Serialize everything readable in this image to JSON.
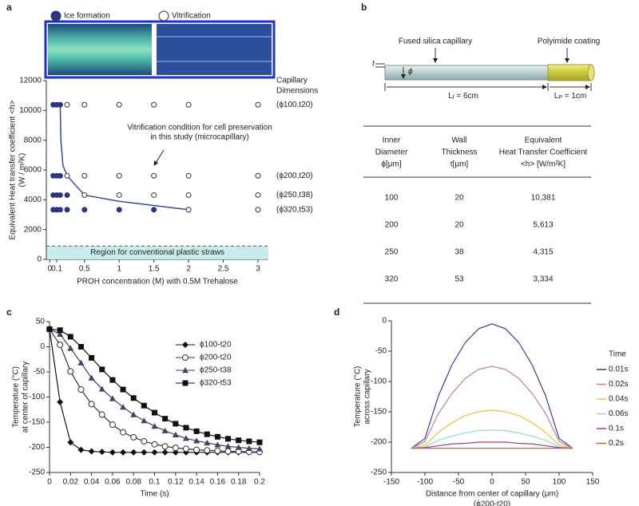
{
  "panel_labels": [
    "a",
    "b",
    "c",
    "d"
  ],
  "chart_data": [
    {
      "type": "scatter",
      "series": [
        {
          "name": "Ice formation",
          "color": "#2b3580",
          "filled": true,
          "x": [
            0.05,
            0.1,
            0.15,
            0.05,
            0.1,
            0.15,
            0.05,
            0.1,
            0.15,
            0.25,
            0.05,
            0.1,
            0.15,
            0.25,
            0.5,
            1,
            1.5
          ],
          "y": [
            10381,
            10381,
            10381,
            5613,
            5613,
            5613,
            4315,
            4315,
            4315,
            4315,
            3334,
            3334,
            3334,
            3334,
            3334,
            3334,
            3334
          ]
        },
        {
          "name": "Vitrification",
          "color": "#333333",
          "filled": false,
          "x": [
            0.25,
            0.5,
            1,
            1.5,
            2,
            3,
            0.25,
            0.5,
            1,
            1.5,
            2,
            3,
            0.5,
            1,
            1.5,
            2,
            3,
            2,
            3
          ],
          "y": [
            10381,
            10381,
            10381,
            10381,
            10381,
            10381,
            5613,
            5613,
            5613,
            5613,
            5613,
            5613,
            4315,
            4315,
            4315,
            4315,
            4315,
            3334,
            3334
          ]
        }
      ],
      "fit_line": {
        "color": "#3a4a9a",
        "x": [
          0.15,
          0.16,
          0.19,
          0.25,
          0.5,
          1,
          2
        ],
        "y": [
          10381,
          8000,
          6300,
          5613,
          4315,
          3900,
          3334
        ]
      },
      "xlim": [
        -0.05,
        3.15
      ],
      "xticks": [
        0,
        0.1,
        0.5,
        1,
        1.5,
        2,
        2.5,
        3
      ],
      "ylim": [
        0,
        12000
      ],
      "yticks": [
        0,
        2000,
        4000,
        6000,
        8000,
        10000,
        12000
      ],
      "xlabel": "PROH concentration (M) with 0.5M Trehalose",
      "ylabel": [
        "Equivalent Heat transfer coefficient <h>",
        "(W / m²K)"
      ],
      "region": {
        "value": 900,
        "label": "Region for conventional plastic straws",
        "color": "#c8ecec"
      },
      "annotation": [
        "Vitrification condition for cell preservation",
        "in this study (microcapillary)"
      ],
      "right_title": [
        "Capillary",
        "Dimensions"
      ],
      "row_labels": [
        {
          "value": 10381,
          "label": "(ϕ100,t20)"
        },
        {
          "value": 5613,
          "label": "(ϕ200,t20)"
        },
        {
          "value": 4315,
          "label": "(ϕ250,t38)"
        },
        {
          "value": 3334,
          "label": "(ϕ320,t53)"
        }
      ]
    },
    {
      "type": "line",
      "x": [
        0,
        0.01,
        0.02,
        0.03,
        0.04,
        0.05,
        0.06,
        0.07,
        0.08,
        0.09,
        0.1,
        0.11,
        0.12,
        0.13,
        0.14,
        0.15,
        0.16,
        0.17,
        0.18,
        0.19,
        0.2
      ],
      "series": [
        {
          "name": "ϕ100-t20",
          "color": "#111111",
          "marker": "diamond",
          "values": [
            35,
            -110,
            -190,
            -205,
            -208,
            -209,
            -210,
            -210,
            -210,
            -210,
            -210,
            -210,
            -210,
            -210,
            -210,
            -210,
            -210,
            -210,
            -210,
            -210,
            -210
          ]
        },
        {
          "name": "ϕ200-t20",
          "color": "#333333",
          "marker": "circle-open",
          "values": [
            35,
            4,
            -49,
            -85,
            -114,
            -135,
            -155,
            -170,
            -180,
            -188,
            -194,
            -198,
            -201,
            -203,
            -205,
            -206,
            -207,
            -208,
            -208,
            -209,
            -209
          ]
        },
        {
          "name": "ϕ250-t38",
          "color": "#3c4663",
          "marker": "triangle",
          "values": [
            35,
            25,
            -3,
            -32,
            -62,
            -84,
            -103,
            -120,
            -135,
            -147,
            -158,
            -167,
            -175,
            -182,
            -187,
            -191,
            -195,
            -198,
            -200,
            -202,
            -203
          ]
        },
        {
          "name": "ϕ320-t53",
          "color": "#111111",
          "marker": "square",
          "values": [
            35,
            33,
            20,
            0,
            -22,
            -45,
            -66,
            -85,
            -102,
            -117,
            -131,
            -143,
            -153,
            -161,
            -168,
            -174,
            -179,
            -183,
            -186,
            -188,
            -190
          ]
        }
      ],
      "xlim": [
        0,
        0.2
      ],
      "xticks": [
        0,
        0.02,
        0.04,
        0.06,
        0.08,
        0.1,
        0.12,
        0.14,
        0.16,
        0.18,
        0.2
      ],
      "ylim": [
        -250,
        50
      ],
      "yticks": [
        -250,
        -200,
        -150,
        -100,
        -50,
        0,
        50
      ],
      "xlabel": [
        "Time (s)"
      ],
      "ylabel": [
        "Temperature (°C)",
        "at center of capillary"
      ]
    },
    {
      "type": "line",
      "x": [
        -120,
        -100,
        -80,
        -60,
        -40,
        -20,
        0,
        20,
        40,
        60,
        80,
        100,
        120
      ],
      "legend_title": "Time",
      "series": [
        {
          "name": "0.01s",
          "color": "#3b3f8f",
          "values": [
            -210,
            -194,
            -124,
            -73,
            -36,
            -13,
            -5,
            -13,
            -36,
            -73,
            -124,
            -194,
            -210
          ]
        },
        {
          "name": "0.02s",
          "color": "#c77ba0",
          "values": [
            -210,
            -199,
            -153,
            -120,
            -95,
            -80,
            -75,
            -80,
            -95,
            -120,
            -153,
            -199,
            -210
          ]
        },
        {
          "name": "0.04s",
          "color": "#f0c040",
          "values": [
            -210,
            -205,
            -184,
            -168,
            -156,
            -150,
            -147,
            -150,
            -156,
            -168,
            -184,
            -205,
            -210
          ]
        },
        {
          "name": "0.06s",
          "color": "#8fd6e0",
          "values": [
            -210,
            -208,
            -197,
            -190,
            -185,
            -181,
            -180,
            -181,
            -185,
            -190,
            -197,
            -208,
            -210
          ]
        },
        {
          "name": "0.1s",
          "color": "#9b3d8f",
          "values": [
            -210,
            -209,
            -206,
            -203,
            -202,
            -200,
            -200,
            -200,
            -202,
            -203,
            -206,
            -209,
            -210
          ]
        },
        {
          "name": "0.2s",
          "color": "#d9553a",
          "values": [
            -210,
            -210,
            -210,
            -210,
            -210,
            -210,
            -210,
            -210,
            -210,
            -210,
            -210,
            -210,
            -210
          ]
        }
      ],
      "xlim": [
        -150,
        150
      ],
      "xticks": [
        -150,
        -100,
        -50,
        0,
        50,
        100,
        150
      ],
      "ylim": [
        -250,
        0
      ],
      "yticks": [
        -250,
        -200,
        -150,
        -100,
        -50,
        0
      ],
      "xlabel": [
        "Distance from center of capillary (μm)",
        "(ϕ200-t20)"
      ],
      "ylabel": [
        "Temperature (°C)",
        "across capillary"
      ]
    }
  ],
  "diagram": {
    "t": "t",
    "phi": "ϕ",
    "capillary": "Fused silica capillary",
    "coating": "Polyimide coating",
    "lf": [
      "L",
      "f",
      " = 6cm"
    ],
    "lp": [
      "L",
      "P",
      " = 1cm"
    ]
  },
  "table": {
    "header": [
      [
        "Inner",
        "Diameter",
        "ϕ[μm]"
      ],
      [
        "Wall",
        "Thickness",
        "t[μm]"
      ],
      [
        "Equivalent",
        "Heat Transfer Coefficient",
        "<h> [W/m²K]"
      ]
    ],
    "rows": [
      [
        "100",
        "20",
        "10,381"
      ],
      [
        "200",
        "20",
        "5,613"
      ],
      [
        "250",
        "38",
        "4,315"
      ],
      [
        "320",
        "53",
        "3,334"
      ]
    ]
  }
}
